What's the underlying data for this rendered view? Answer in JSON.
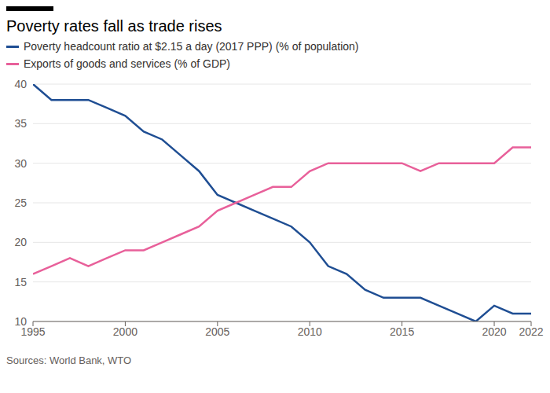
{
  "chart_data": {
    "type": "line",
    "title": "Poverty rates fall as trade rises",
    "source": "Sources: World Bank, WTO",
    "x": [
      1995,
      1996,
      1997,
      1998,
      1999,
      2000,
      2001,
      2002,
      2003,
      2004,
      2005,
      2006,
      2007,
      2008,
      2009,
      2010,
      2011,
      2012,
      2013,
      2014,
      2015,
      2016,
      2017,
      2018,
      2019,
      2020,
      2021,
      2022
    ],
    "series": [
      {
        "name": "Poverty headcount ratio at $2.15 a day (2017 PPP) (% of population)",
        "color": "#1f4e93",
        "values": [
          40,
          38,
          38,
          38,
          37,
          36,
          34,
          33,
          31,
          29,
          26,
          25,
          24,
          23,
          22,
          20,
          17,
          16,
          14,
          13,
          13,
          13,
          12,
          11,
          10,
          12,
          11,
          11
        ]
      },
      {
        "name": "Exports of goods and services (% of GDP)",
        "color": "#e8609a",
        "values": [
          16,
          17,
          18,
          17,
          18,
          19,
          19,
          20,
          21,
          22,
          24,
          25,
          26,
          27,
          27,
          29,
          30,
          30,
          30,
          30,
          30,
          29,
          30,
          30,
          30,
          30,
          32,
          32
        ]
      }
    ],
    "xlim": [
      1995,
      2022
    ],
    "xticks": [
      1995,
      2000,
      2005,
      2010,
      2015,
      2020,
      2022
    ],
    "ylim": [
      10,
      40
    ],
    "yticks": [
      10,
      15,
      20,
      25,
      30,
      35,
      40
    ],
    "grid": true,
    "legend": "top"
  }
}
